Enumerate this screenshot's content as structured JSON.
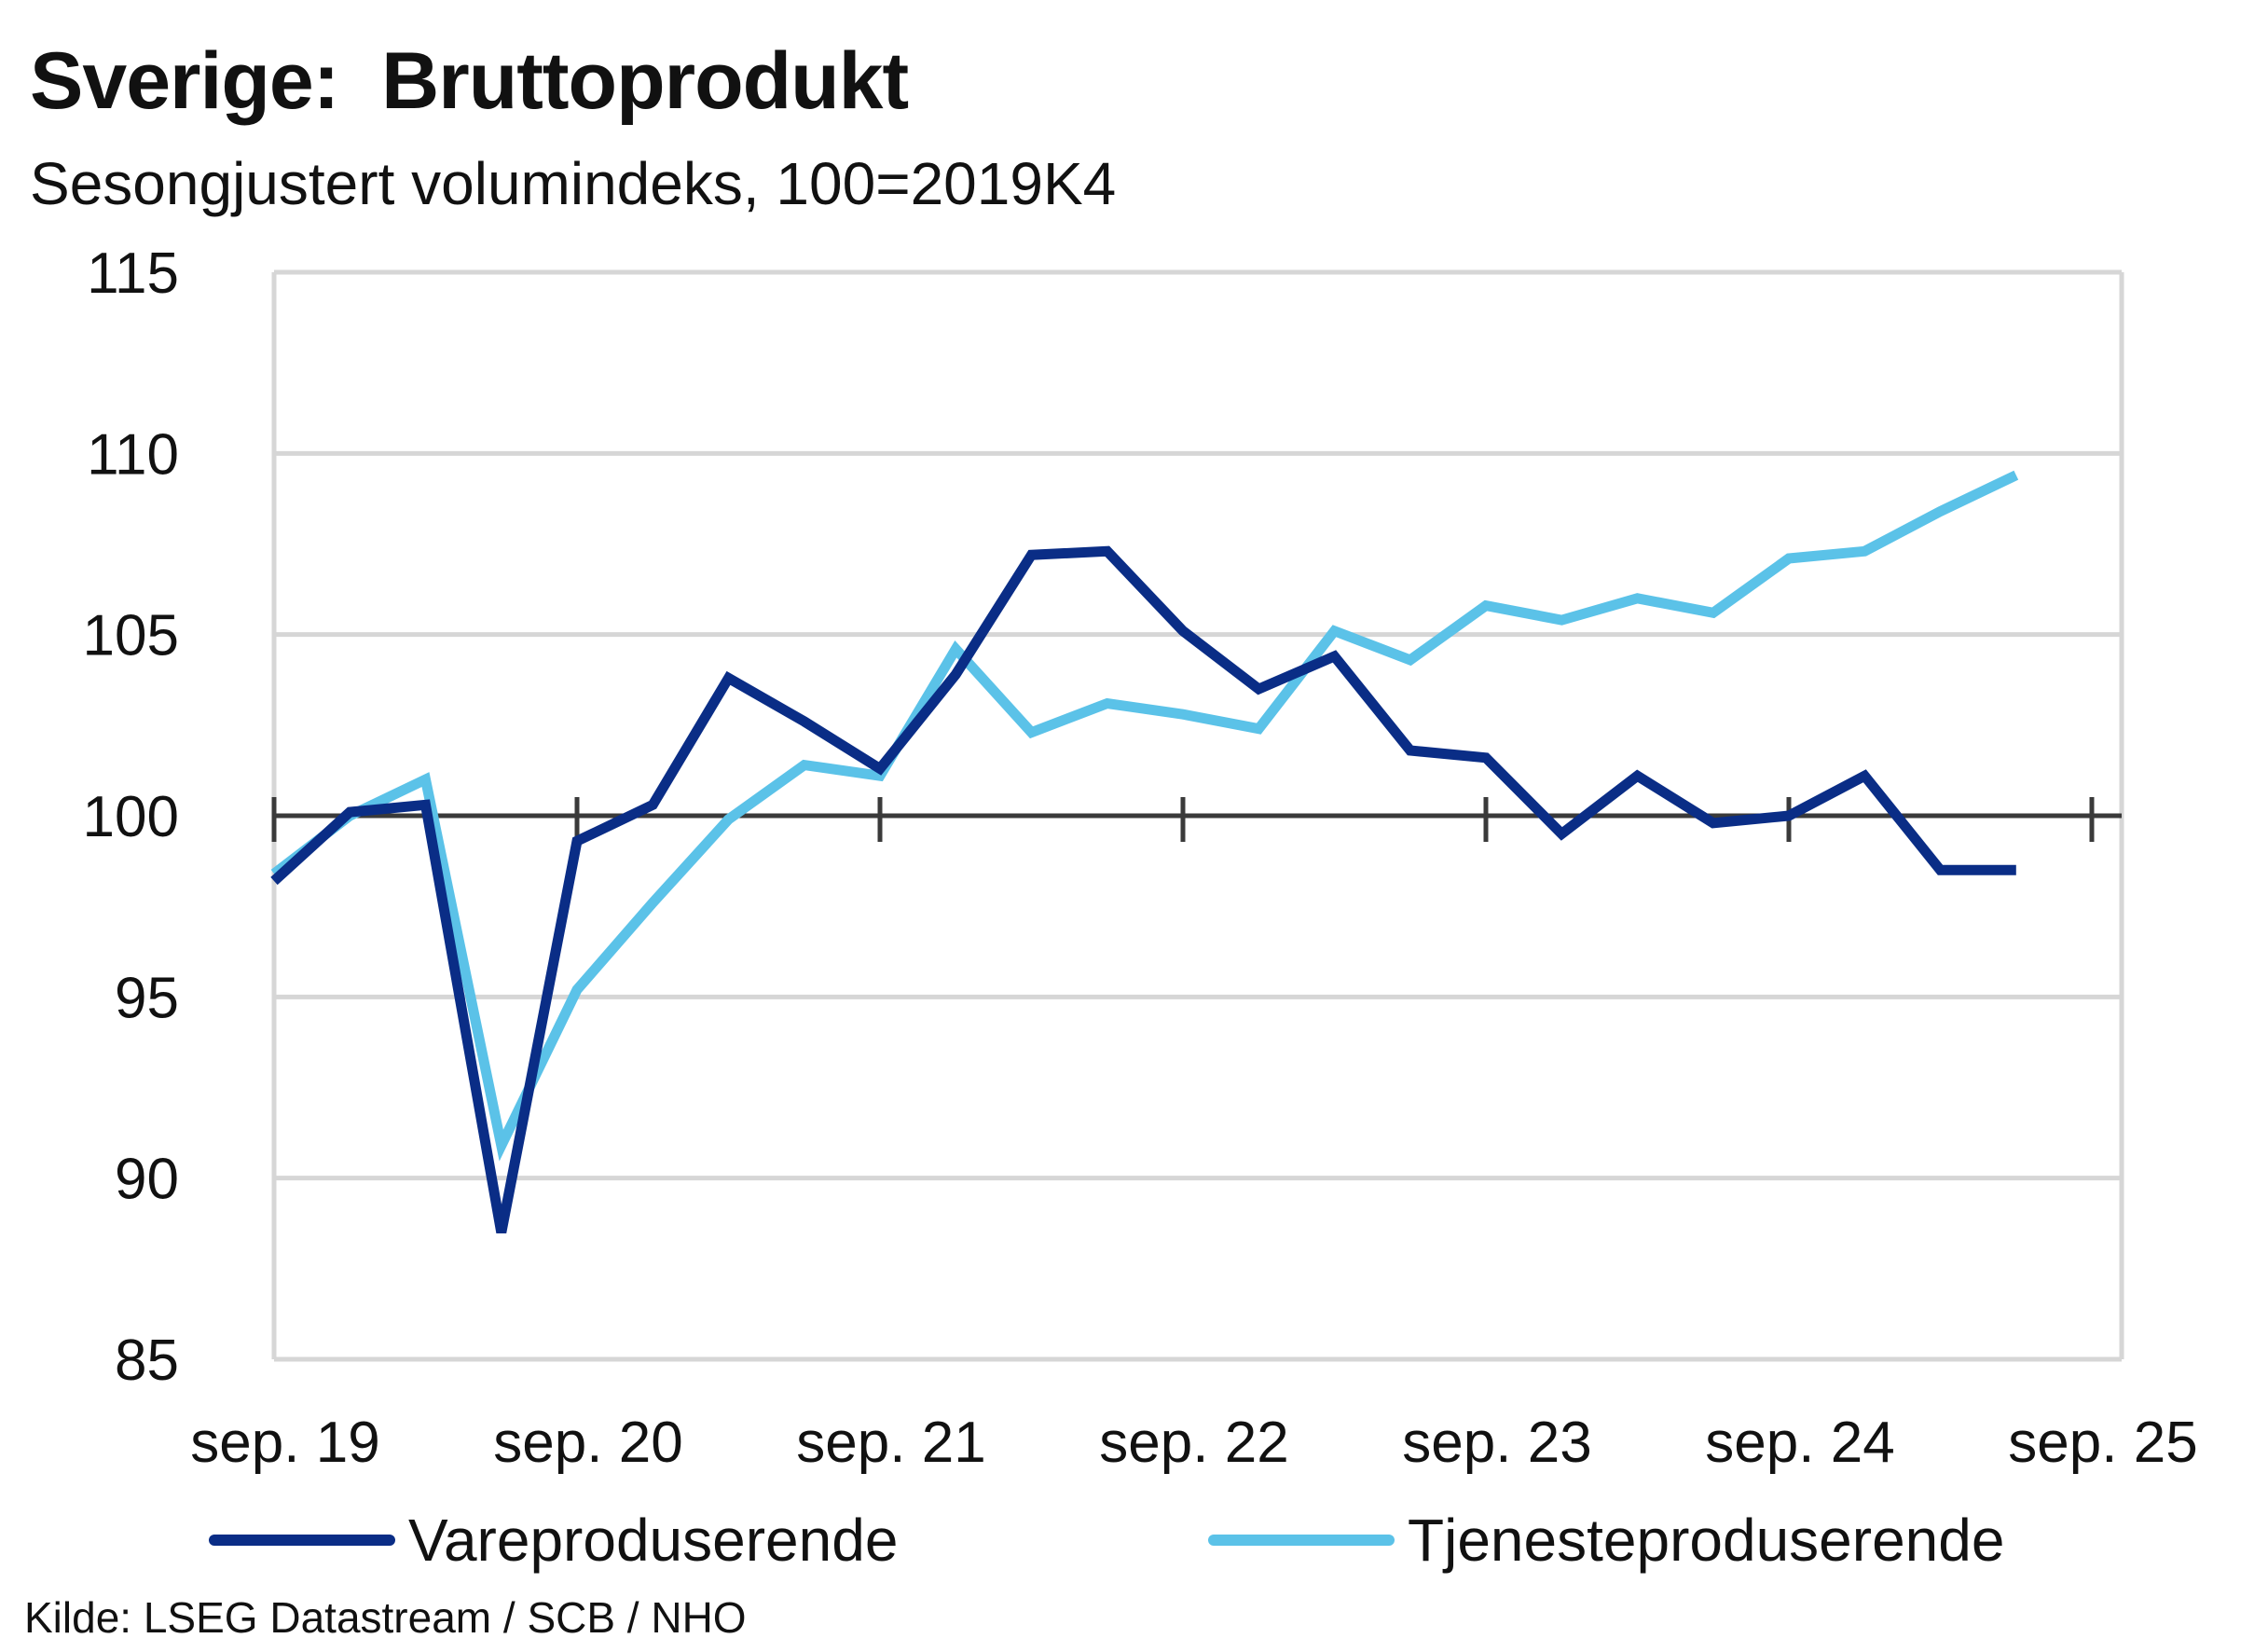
{
  "chart_data": {
    "type": "line",
    "title": "Sverige:  Bruttoprodukt",
    "subtitle": "Sesongjustert volumindeks, 100=2019K4",
    "xlabel": "",
    "ylabel": "",
    "ylim": [
      85,
      115
    ],
    "yticks": [
      85,
      90,
      95,
      100,
      105,
      110,
      115
    ],
    "x": [
      "2019K3",
      "2019K4",
      "2020K1",
      "2020K2",
      "2020K3",
      "2020K4",
      "2021K1",
      "2021K2",
      "2021K3",
      "2021K4",
      "2022K1",
      "2022K2",
      "2022K3",
      "2022K4",
      "2023K1",
      "2023K2",
      "2023K3",
      "2023K4",
      "2024K1",
      "2024K2",
      "2024K3",
      "2024K4",
      "2025K1",
      "2025K2"
    ],
    "xtick_labels": [
      "sep. 19",
      "sep. 20",
      "sep. 21",
      "sep. 22",
      "sep. 23",
      "sep. 24",
      "sep. 25"
    ],
    "reference_line": 100,
    "grid": "horizontal",
    "legend_position": "bottom",
    "series": [
      {
        "name": "Vareproduserende",
        "color": "#0a2d86",
        "values": [
          98.2,
          100.1,
          100.3,
          88.5,
          99.3,
          100.3,
          103.8,
          102.6,
          101.3,
          103.9,
          107.2,
          107.3,
          105.1,
          103.5,
          104.4,
          101.8,
          101.6,
          99.5,
          101.1,
          99.8,
          100.0,
          101.1,
          98.5,
          98.5
        ]
      },
      {
        "name": "Tjenesteproduserende",
        "color": "#5bc2e8",
        "values": [
          98.4,
          100.0,
          101.0,
          90.9,
          95.2,
          97.6,
          99.9,
          101.4,
          101.1,
          104.6,
          102.3,
          103.1,
          102.8,
          102.4,
          105.1,
          104.3,
          105.8,
          105.4,
          106.0,
          105.6,
          107.1,
          107.3,
          108.4,
          109.4
        ]
      }
    ],
    "source": "Kilde: LSEG Datastream / SCB / NHO",
    "colors": {
      "grid": "#d6d6d6",
      "axis": "#3a3a3a",
      "text": "#111111"
    }
  }
}
